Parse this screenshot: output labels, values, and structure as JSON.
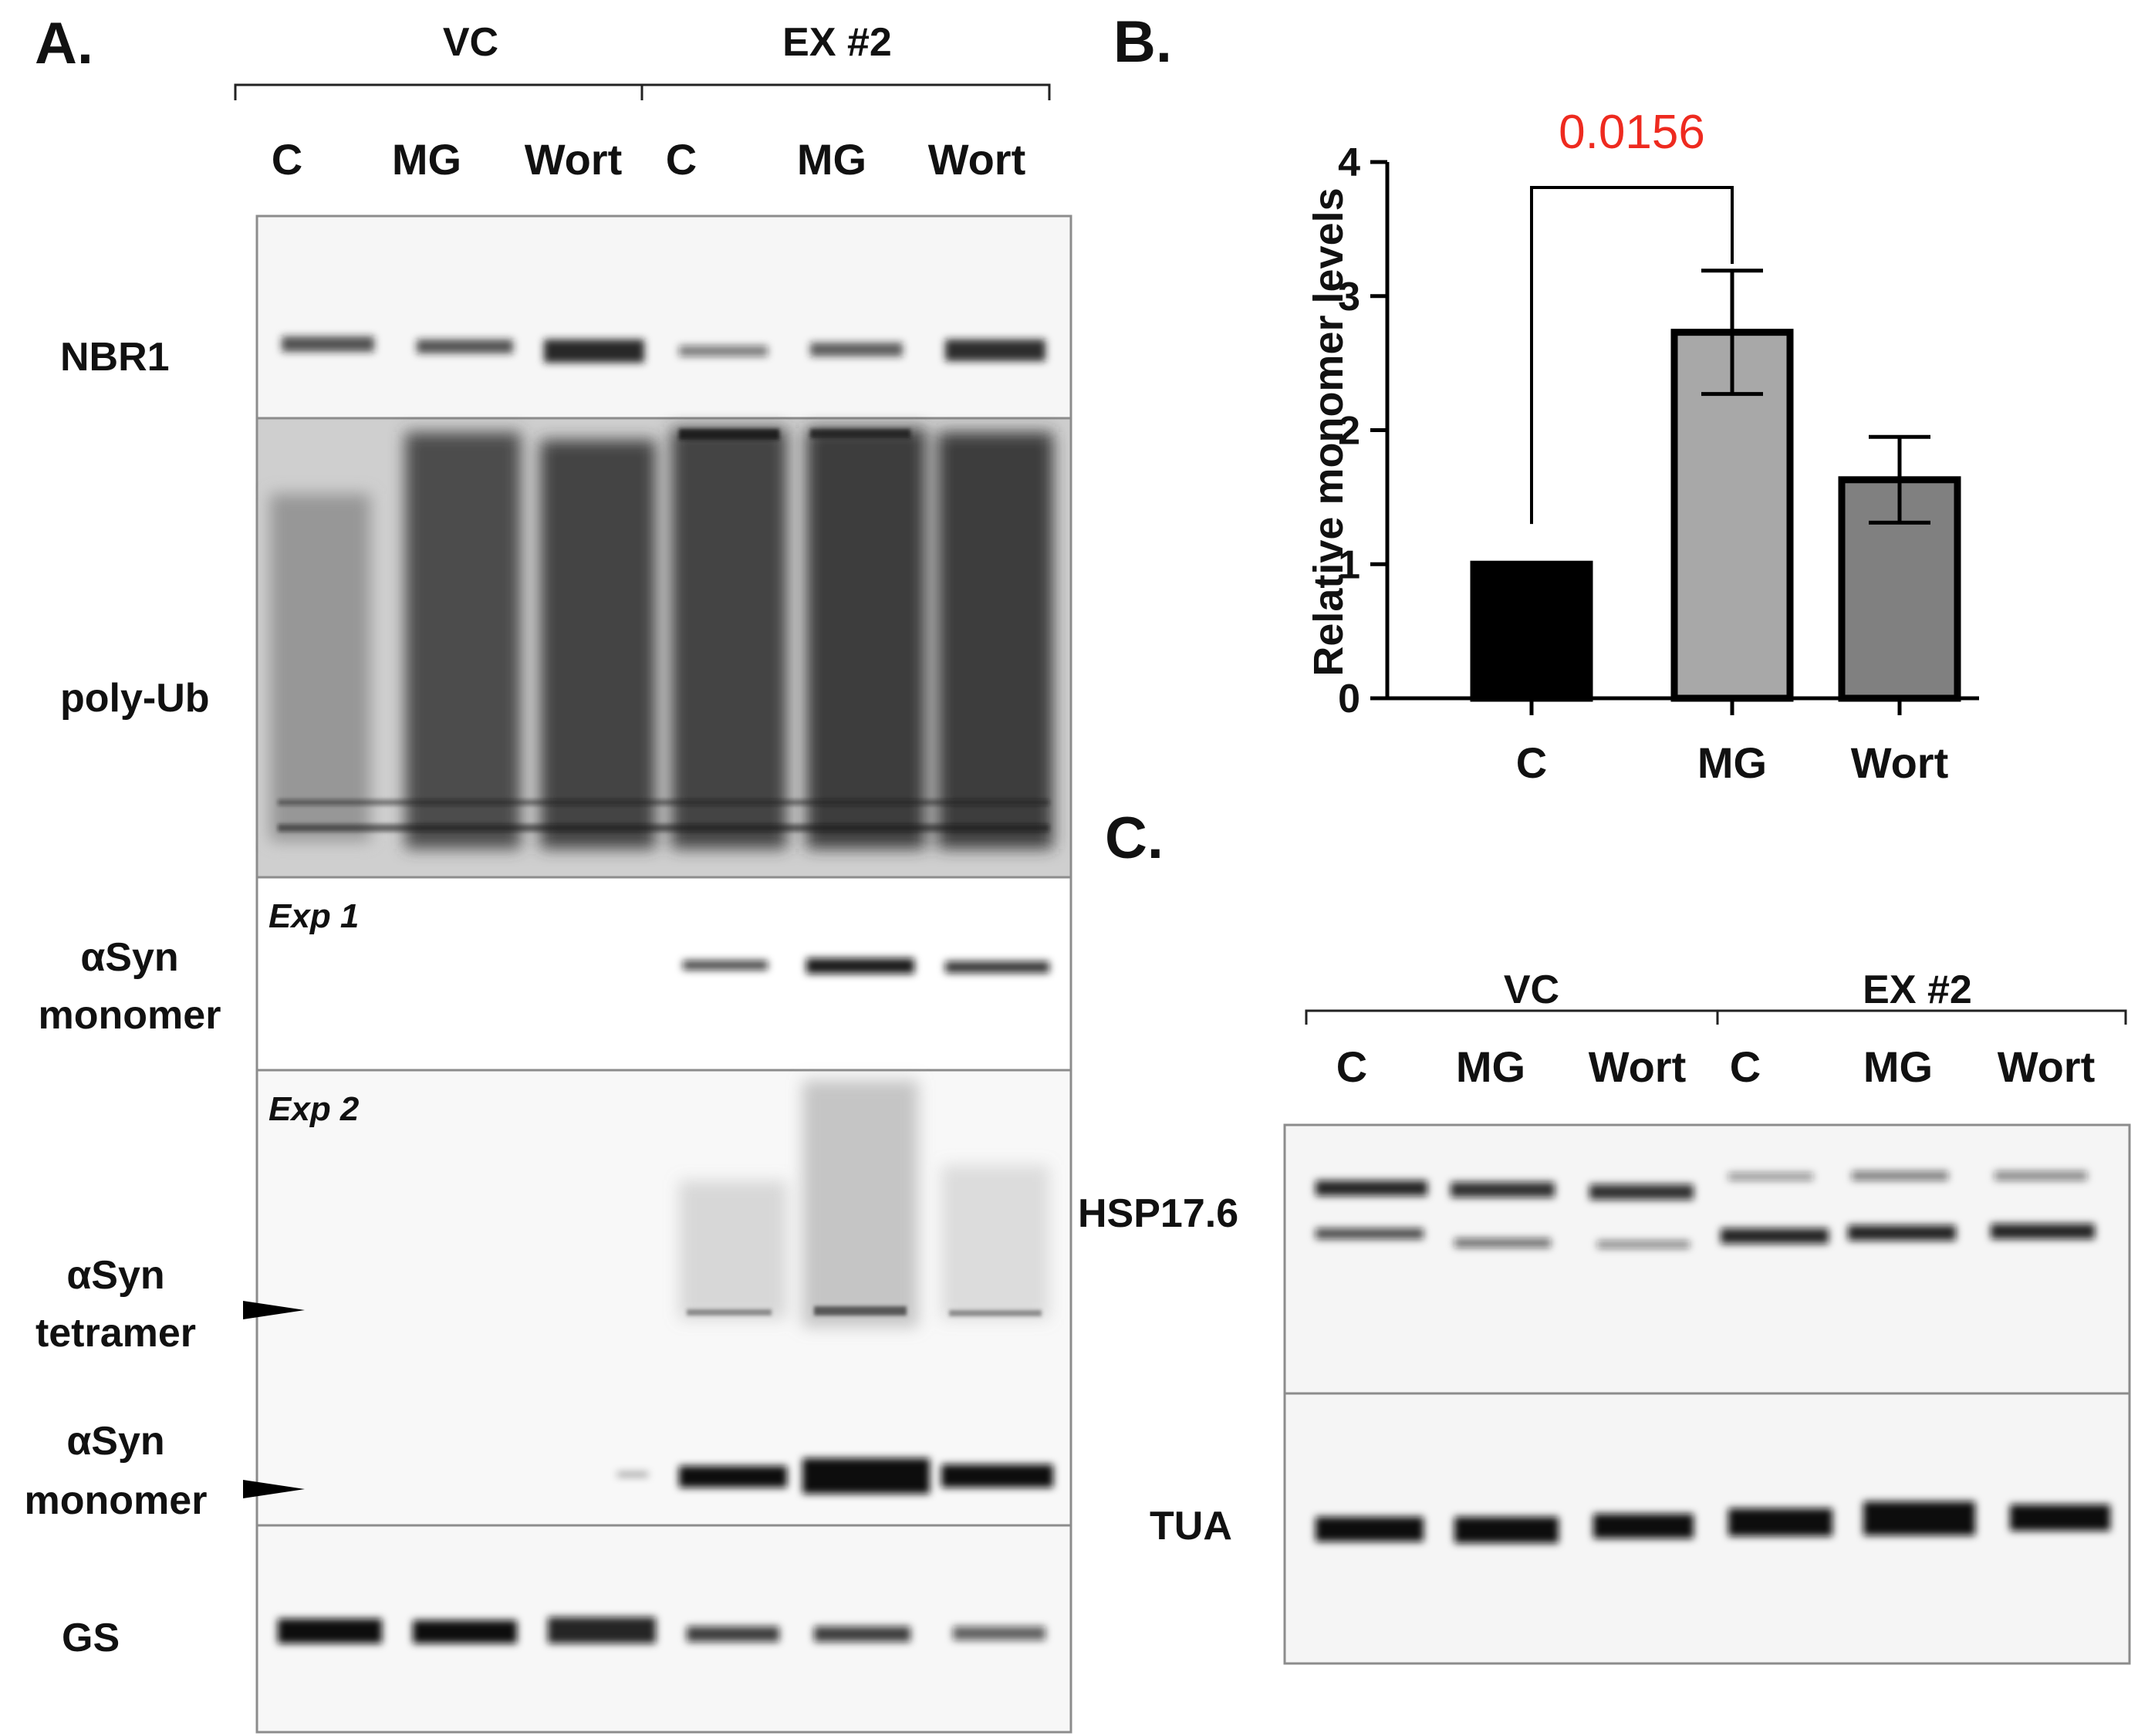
{
  "panel_a": {
    "label": "A.",
    "groups": [
      "VC",
      "EX #2"
    ],
    "lanes": [
      "C",
      "MG",
      "Wort",
      "C",
      "MG",
      "Wort"
    ],
    "blots": {
      "nbr1": "NBR1",
      "polyub": "poly-Ub",
      "exp1_tag": "Exp 1",
      "exp1_label": [
        "αSyn",
        "monomer"
      ],
      "exp2_tag": "Exp 2",
      "tetramer_label": [
        "αSyn",
        "tetramer"
      ],
      "monomer_label": [
        "αSyn",
        "monomer"
      ],
      "gs": "GS"
    }
  },
  "panel_b": {
    "label": "B.",
    "pvalue": "0.0156",
    "colors": {
      "c": "#000000",
      "mg": "#a8a8a8",
      "wort": "#808080",
      "pvalue": "#ee2a1f"
    }
  },
  "chart_data": {
    "type": "bar",
    "categories": [
      "C",
      "MG",
      "Wort"
    ],
    "values": [
      1.0,
      2.73,
      1.63
    ],
    "errors": [
      0,
      0.46,
      0.32
    ],
    "ylabel": "Relative monomer levels",
    "ylim": [
      0,
      4
    ],
    "yticks": [
      "0",
      "1",
      "2",
      "3",
      "4"
    ],
    "annotation": {
      "between": [
        "C",
        "MG"
      ],
      "text": "0.0156"
    }
  },
  "panel_c": {
    "label": "C.",
    "groups": [
      "VC",
      "EX #2"
    ],
    "lanes": [
      "C",
      "MG",
      "Wort",
      "C",
      "MG",
      "Wort"
    ],
    "blots": {
      "hsp": "HSP17.6",
      "tua": "TUA"
    }
  }
}
